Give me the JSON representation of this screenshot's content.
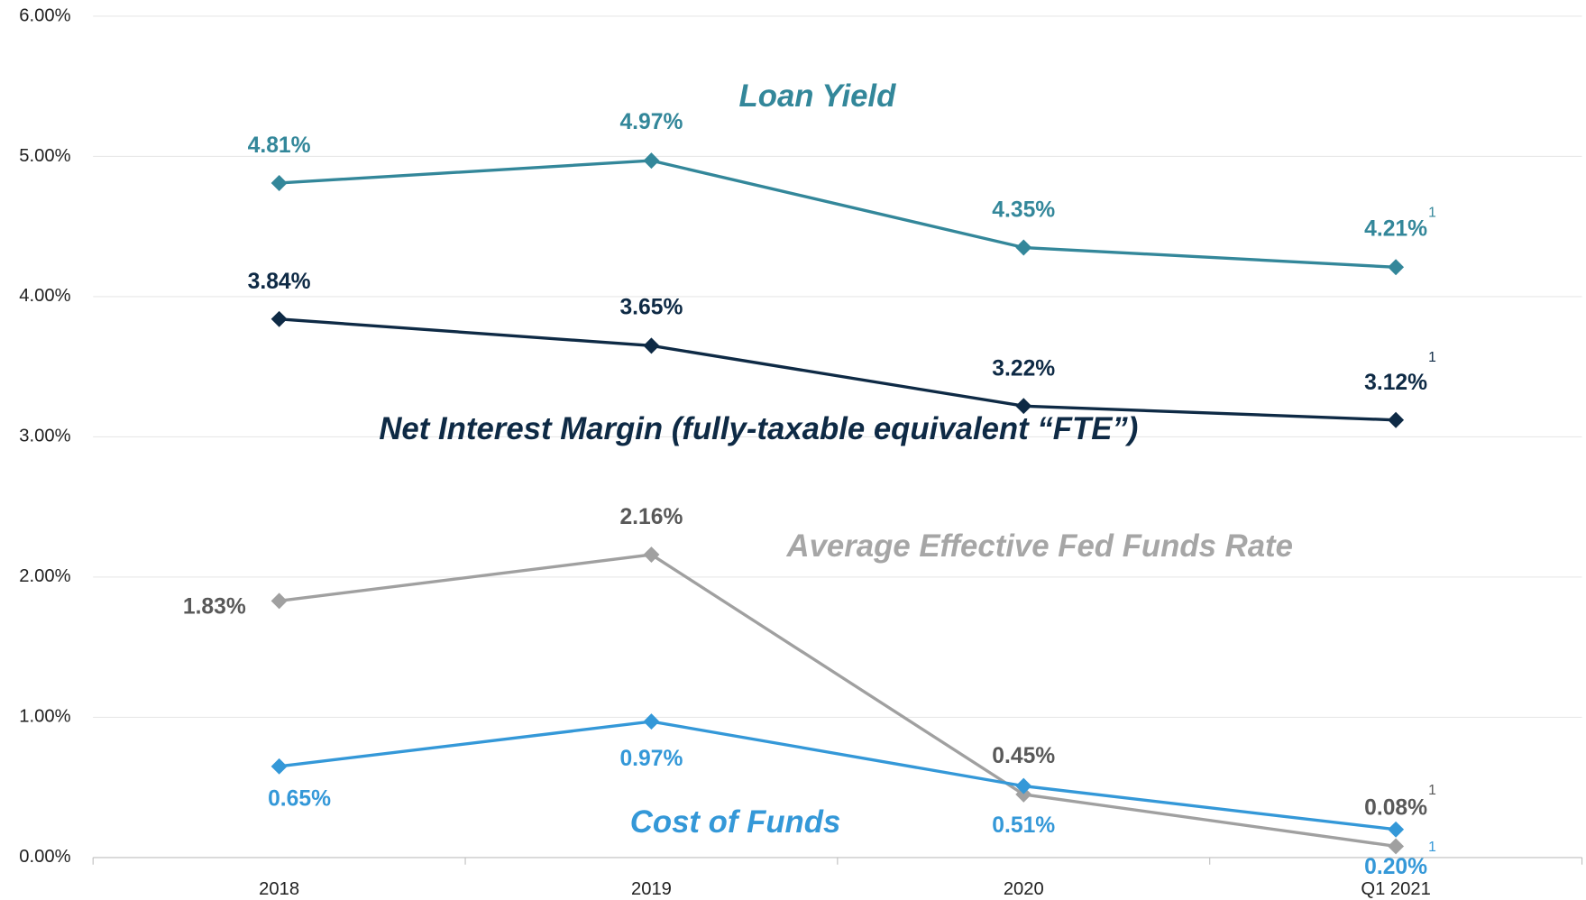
{
  "chart_data": {
    "type": "line",
    "categories": [
      "2018",
      "2019",
      "2020",
      "Q1 2021"
    ],
    "ylim": [
      0,
      6
    ],
    "yticks": [
      {
        "value": 0,
        "label": "0.00%"
      },
      {
        "value": 1,
        "label": "1.00%"
      },
      {
        "value": 2,
        "label": "2.00%"
      },
      {
        "value": 3,
        "label": "3.00%"
      },
      {
        "value": 4,
        "label": "4.00%"
      },
      {
        "value": 5,
        "label": "5.00%"
      },
      {
        "value": 6,
        "label": "6.00%"
      }
    ],
    "grid": true,
    "series": [
      {
        "name": "Loan Yield",
        "color": "#33879a",
        "label_color": "#33879a",
        "footnote": "1",
        "values": [
          4.81,
          4.97,
          4.35,
          4.21
        ],
        "value_labels": [
          "4.81%",
          "4.97%",
          "4.35%",
          "4.21%"
        ]
      },
      {
        "name": "Net Interest Margin (fully-taxable equivalent “FTE”)",
        "color": "#0e2a45",
        "label_color": "#0e2a45",
        "footnote": "1",
        "values": [
          3.84,
          3.65,
          3.22,
          3.12
        ],
        "value_labels": [
          "3.84%",
          "3.65%",
          "3.22%",
          "3.12%"
        ]
      },
      {
        "name": "Average Effective Fed Funds Rate",
        "color": "#a0a0a0",
        "label_color": "#595959",
        "footnote": "1",
        "values": [
          1.83,
          2.16,
          0.45,
          0.08
        ],
        "value_labels": [
          "1.83%",
          "2.16%",
          "0.45%",
          "0.08%"
        ]
      },
      {
        "name": "Cost of Funds",
        "color": "#3498d8",
        "label_color": "#3498d8",
        "footnote": "1",
        "values": [
          0.65,
          0.97,
          0.51,
          0.2
        ],
        "value_labels": [
          "0.65%",
          "0.97%",
          "0.51%",
          "0.20%"
        ]
      }
    ]
  }
}
